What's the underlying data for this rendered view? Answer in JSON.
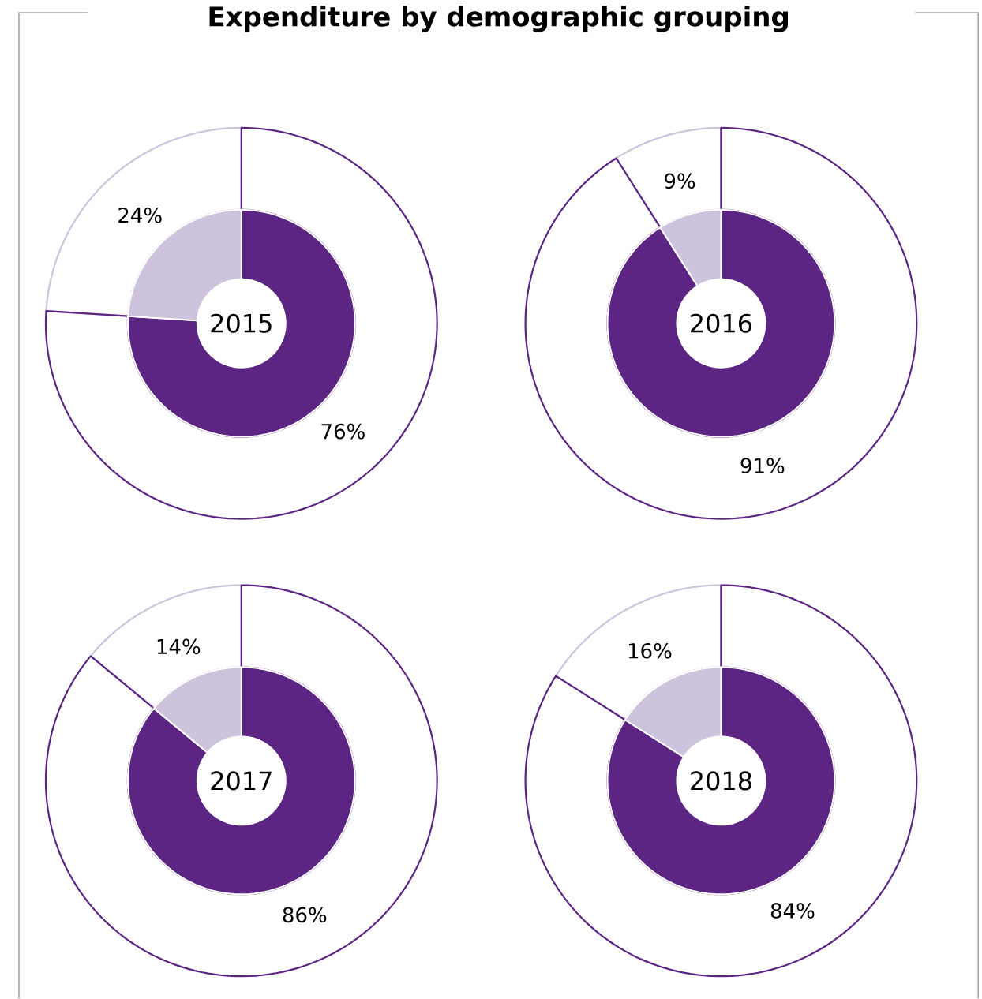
{
  "chart_data": [
    {
      "type": "donut",
      "title": "Expenditure by demographic grouping",
      "subtitle": "2015",
      "categories": [
        null,
        null
      ],
      "values": [
        76,
        24
      ],
      "colors": [
        "#5c2483",
        "#cdc3dc"
      ],
      "value_labels": [
        "76%",
        "24%"
      ]
    },
    {
      "type": "donut",
      "subtitle": "2016",
      "categories": [
        null,
        null
      ],
      "values": [
        91,
        9
      ],
      "colors": [
        "#5c2483",
        "#cdc3dc"
      ],
      "value_labels": [
        "91%",
        "9%"
      ]
    },
    {
      "type": "donut",
      "subtitle": "2017",
      "categories": [
        null,
        null
      ],
      "values": [
        86,
        14
      ],
      "colors": [
        "#5c2483",
        "#cdc3dc"
      ],
      "value_labels": [
        "86%",
        "14%"
      ]
    },
    {
      "type": "donut",
      "subtitle": "2018",
      "categories": [
        null,
        null
      ],
      "values": [
        84,
        16
      ],
      "colors": [
        "#5c2483",
        "#cdc3dc"
      ],
      "value_labels": [
        "84%",
        "16%"
      ]
    }
  ]
}
